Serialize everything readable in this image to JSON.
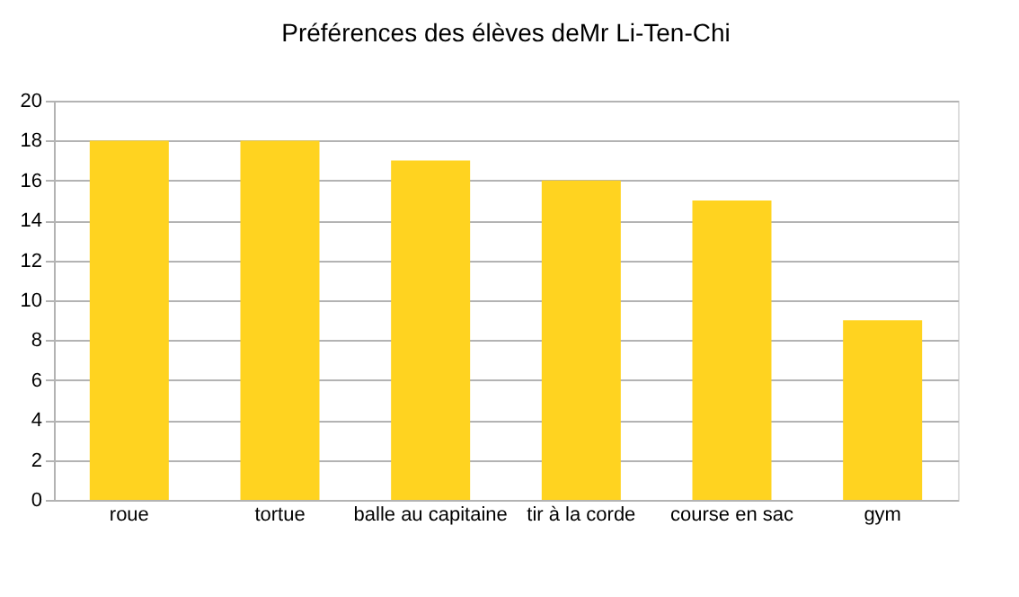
{
  "chart_data": {
    "type": "bar",
    "title": "Préférences des élèves deMr Li-Ten-Chi",
    "categories": [
      "roue",
      "tortue",
      "balle au capitaine",
      "tir à la corde",
      "course en sac",
      "gym"
    ],
    "values": [
      18,
      18,
      17,
      16,
      15,
      9
    ],
    "color": "#ffd320",
    "ylim": [
      0,
      20
    ],
    "yticks": [
      0,
      2,
      4,
      6,
      8,
      10,
      12,
      14,
      16,
      18,
      20
    ],
    "grid": "y"
  }
}
